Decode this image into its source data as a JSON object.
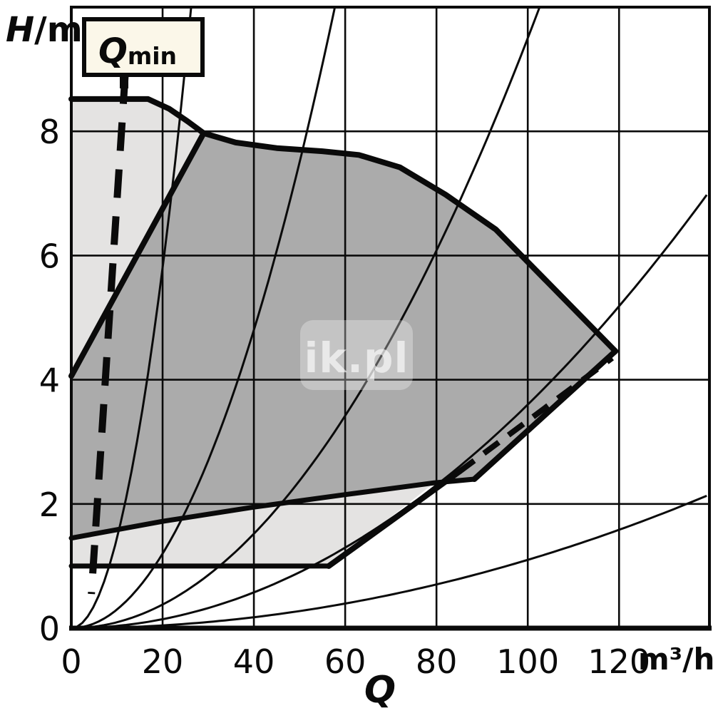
{
  "axes": {
    "y_label_main": "H",
    "y_label_unit": "/m",
    "x_label": "Q",
    "x_unit": "m³/h",
    "x_ticks": [
      "0",
      "20",
      "40",
      "60",
      "80",
      "100",
      "120"
    ],
    "y_ticks": [
      "0",
      "2",
      "4",
      "6",
      "8"
    ]
  },
  "annotation": {
    "label_main": "Q",
    "label_sub": "min"
  },
  "watermark": {
    "text": "ik.pl"
  },
  "colors": {
    "light_region": "#E4E3E2",
    "dark_region": "#ABABAB",
    "line": "#0a0a0a",
    "annotation_box_fill": "#FBF7E9",
    "background": "#ffffff"
  },
  "chart_data": {
    "type": "area",
    "title": "",
    "xlabel": "Q",
    "x_unit": "m³/h",
    "ylabel": "H/m",
    "xlim": [
      0,
      139.8
    ],
    "ylim": [
      0,
      10
    ],
    "x_tick_values": [
      0,
      20,
      40,
      60,
      80,
      100,
      120
    ],
    "y_tick_values": [
      0,
      2,
      4,
      6,
      8
    ],
    "grid": "on",
    "regions": {
      "envelope_upper": [
        [
          0,
          8.52
        ],
        [
          16.8,
          8.52
        ],
        [
          21.5,
          8.36
        ],
        [
          25.5,
          8.16
        ],
        [
          29,
          7.97
        ],
        [
          0,
          4.06
        ]
      ],
      "envelope_lower": [
        [
          0,
          1.45
        ],
        [
          20,
          1.72
        ],
        [
          40,
          1.95
        ],
        [
          60,
          2.15
        ],
        [
          79.5,
          2.34
        ],
        [
          56.4,
          1.0
        ],
        [
          0,
          1.0
        ]
      ],
      "operating_field": [
        [
          0,
          4.06
        ],
        [
          29,
          7.97
        ],
        [
          36,
          7.82
        ],
        [
          45,
          7.73
        ],
        [
          55,
          7.68
        ],
        [
          63,
          7.62
        ],
        [
          72,
          7.42
        ],
        [
          82,
          6.98
        ],
        [
          93,
          6.42
        ],
        [
          119.2,
          4.46
        ],
        [
          88.3,
          2.4
        ],
        [
          79.5,
          2.34
        ],
        [
          60,
          2.15
        ],
        [
          40,
          1.95
        ],
        [
          20,
          1.72
        ],
        [
          0,
          1.45
        ]
      ]
    },
    "boundaries": {
      "max_speed_curve": [
        [
          0,
          8.52
        ],
        [
          16.8,
          8.52
        ],
        [
          21.5,
          8.36
        ],
        [
          25.5,
          8.16
        ],
        [
          29,
          7.97
        ],
        [
          36,
          7.82
        ],
        [
          45,
          7.73
        ],
        [
          55,
          7.68
        ],
        [
          63,
          7.62
        ],
        [
          72,
          7.42
        ],
        [
          82,
          6.98
        ],
        [
          93,
          6.42
        ],
        [
          119.2,
          4.46
        ]
      ],
      "field_left_edge": [
        [
          0,
          4.06
        ],
        [
          29,
          7.97
        ]
      ],
      "min_speed_curve": [
        [
          0,
          1.45
        ],
        [
          20,
          1.72
        ],
        [
          40,
          1.95
        ],
        [
          60,
          2.15
        ],
        [
          79.5,
          2.34
        ],
        [
          88.3,
          2.4
        ]
      ],
      "field_right_edge": [
        [
          88.3,
          2.4
        ],
        [
          119.2,
          4.46
        ]
      ],
      "floor_line": [
        [
          0,
          1.0
        ],
        [
          56.4,
          1.0
        ]
      ],
      "qmin_right_solid": [
        [
          56.4,
          1.0
        ],
        [
          85,
          2.52
        ]
      ]
    },
    "qmin_lines": {
      "left_dashed": [
        [
          11.8,
          8.9
        ],
        [
          4.4,
          0.55
        ]
      ],
      "right_dashed": [
        [
          85,
          2.52
        ],
        [
          118.5,
          4.35
        ]
      ]
    },
    "system_curves_k": [
      0.0145,
      0.003,
      0.00095,
      0.00036,
      0.00011
    ]
  }
}
